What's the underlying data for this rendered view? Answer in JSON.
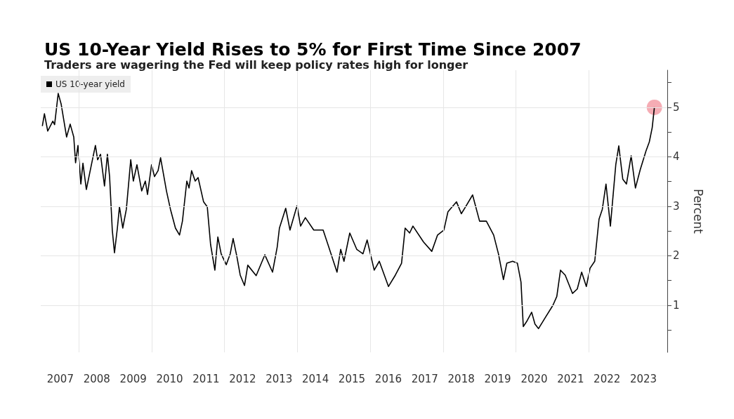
{
  "chart_data": {
    "type": "line",
    "title": "US 10-Year Yield Rises to 5% for First Time Since 2007",
    "subtitle": "Traders are wagering the Fed will keep policy rates high for longer",
    "ylabel": "Percent",
    "legend": "top left",
    "grid": true,
    "marker": "none",
    "line_style": "solid",
    "xlim": [
      "2006-12-17",
      "2024-02-25"
    ],
    "xticks": [
      {
        "value": "2007-07-01",
        "label": "2007"
      },
      {
        "value": "2008-01-01",
        "label": null
      },
      {
        "value": "2008-07-01",
        "label": "2008"
      },
      {
        "value": "2009-07-01",
        "label": "2009"
      },
      {
        "value": "2010-01-01",
        "label": null
      },
      {
        "value": "2010-07-01",
        "label": "2010"
      },
      {
        "value": "2011-07-01",
        "label": "2011"
      },
      {
        "value": "2012-01-01",
        "label": null
      },
      {
        "value": "2012-07-01",
        "label": "2012"
      },
      {
        "value": "2013-07-01",
        "label": "2013"
      },
      {
        "value": "2014-01-01",
        "label": null
      },
      {
        "value": "2014-07-01",
        "label": "2014"
      },
      {
        "value": "2015-07-01",
        "label": "2015"
      },
      {
        "value": "2016-01-01",
        "label": null
      },
      {
        "value": "2016-07-01",
        "label": "2016"
      },
      {
        "value": "2017-07-01",
        "label": "2017"
      },
      {
        "value": "2018-01-01",
        "label": null
      },
      {
        "value": "2018-07-01",
        "label": "2018"
      },
      {
        "value": "2019-07-01",
        "label": "2019"
      },
      {
        "value": "2020-01-01",
        "label": null
      },
      {
        "value": "2020-07-01",
        "label": "2020"
      },
      {
        "value": "2021-07-01",
        "label": "2021"
      },
      {
        "value": "2022-01-01",
        "label": null
      },
      {
        "value": "2022-07-01",
        "label": "2022"
      },
      {
        "value": "2023-07-01",
        "label": "2023"
      }
    ],
    "ylim": [
      0.05,
      5.75
    ],
    "yticks": [
      {
        "value": 0.5,
        "label": null
      },
      1,
      {
        "value": 1.5,
        "label": null
      },
      2,
      {
        "value": 2.5,
        "label": null
      },
      3,
      {
        "value": 3.5,
        "label": null
      },
      4,
      {
        "value": 4.5,
        "label": null
      },
      5,
      {
        "value": 5.5,
        "label": null
      }
    ],
    "series": [
      {
        "name": "US 10-year yield",
        "color": "#000000",
        "x": [
          "2007-01-02",
          "2007-01-23",
          "2007-02-25",
          "2007-04-17",
          "2007-05-05",
          "2007-06-10",
          "2007-07-09",
          "2007-09-02",
          "2007-10-08",
          "2007-11-13",
          "2007-12-01",
          "2007-12-25",
          "2008-01-23",
          "2008-02-13",
          "2008-03-18",
          "2008-05-08",
          "2008-06-17",
          "2008-07-09",
          "2008-08-07",
          "2008-09-16",
          "2008-10-15",
          "2008-11-06",
          "2008-12-03",
          "2008-12-25",
          "2009-01-23",
          "2009-02-13",
          "2009-03-18",
          "2009-04-23",
          "2009-06-06",
          "2009-07-02",
          "2009-08-07",
          "2009-09-24",
          "2009-10-30",
          "2009-11-21",
          "2010-01-01",
          "2010-01-30",
          "2010-03-07",
          "2010-04-01",
          "2010-05-30",
          "2010-07-09",
          "2010-08-28",
          "2010-10-08",
          "2010-11-06",
          "2010-12-20",
          "2011-01-11",
          "2011-02-06",
          "2011-03-14",
          "2011-04-12",
          "2011-06-06",
          "2011-07-13",
          "2011-08-15",
          "2011-09-27",
          "2011-10-27",
          "2011-11-29",
          "2012-01-19",
          "2012-02-28",
          "2012-03-28",
          "2012-05-04",
          "2012-06-07",
          "2012-07-20",
          "2012-08-22",
          "2012-11-14",
          "2013-02-09",
          "2013-04-27",
          "2013-06-13",
          "2013-07-05",
          "2013-09-06",
          "2013-10-19",
          "2013-12-28",
          "2014-02-02",
          "2014-03-22",
          "2014-06-14",
          "2014-09-16",
          "2014-11-03",
          "2015-02-02",
          "2015-03-11",
          "2015-04-13",
          "2015-06-10",
          "2015-08-19",
          "2015-10-20",
          "2015-12-01",
          "2016-02-10",
          "2016-04-01",
          "2016-07-02",
          "2016-09-09",
          "2016-11-10",
          "2016-12-16",
          "2017-01-30",
          "2017-03-04",
          "2017-06-18",
          "2017-09-09",
          "2017-11-06",
          "2018-01-08",
          "2018-02-18",
          "2018-05-15",
          "2018-07-02",
          "2018-08-14",
          "2018-10-23",
          "2019-01-01",
          "2019-03-10",
          "2019-05-22",
          "2019-07-09",
          "2019-08-28",
          "2019-10-01",
          "2019-11-28",
          "2020-01-15",
          "2020-02-20",
          "2020-03-14",
          "2020-04-16",
          "2020-06-06",
          "2020-07-09",
          "2020-08-14",
          "2020-10-23",
          "2021-01-05",
          "2021-02-13",
          "2021-03-22",
          "2021-05-08",
          "2021-07-20",
          "2021-09-06",
          "2021-10-20",
          "2021-12-06",
          "2022-01-12",
          "2022-02-28",
          "2022-04-12",
          "2022-05-15",
          "2022-06-21",
          "2022-08-04",
          "2022-09-27",
          "2022-10-27",
          "2022-12-06",
          "2023-01-12",
          "2023-02-28",
          "2023-04-12",
          "2023-05-30",
          "2023-07-27",
          "2023-08-29",
          "2023-09-27",
          "2023-10-19"
        ],
        "values": [
          4.62,
          4.87,
          4.52,
          4.72,
          4.65,
          5.28,
          5.07,
          4.4,
          4.66,
          4.4,
          3.88,
          4.23,
          3.45,
          3.87,
          3.34,
          3.84,
          4.23,
          3.94,
          4.05,
          3.41,
          4.05,
          3.6,
          2.52,
          2.06,
          2.56,
          2.99,
          2.56,
          2.94,
          3.94,
          3.51,
          3.84,
          3.31,
          3.51,
          3.24,
          3.84,
          3.6,
          3.72,
          3.98,
          3.31,
          2.94,
          2.56,
          2.42,
          2.7,
          3.51,
          3.37,
          3.72,
          3.51,
          3.58,
          3.09,
          2.99,
          2.23,
          1.71,
          2.38,
          2.04,
          1.82,
          2.04,
          2.35,
          1.99,
          1.61,
          1.4,
          1.81,
          1.6,
          2.02,
          1.67,
          2.18,
          2.56,
          2.96,
          2.52,
          3.01,
          2.6,
          2.77,
          2.52,
          2.52,
          2.23,
          1.67,
          2.13,
          1.89,
          2.46,
          2.13,
          2.04,
          2.32,
          1.71,
          1.89,
          1.38,
          1.61,
          1.85,
          2.56,
          2.46,
          2.6,
          2.28,
          2.09,
          2.42,
          2.52,
          2.89,
          3.09,
          2.85,
          2.99,
          3.23,
          2.7,
          2.7,
          2.42,
          2.04,
          1.52,
          1.85,
          1.89,
          1.85,
          1.47,
          0.57,
          0.67,
          0.86,
          0.62,
          0.53,
          0.76,
          1.0,
          1.18,
          1.71,
          1.61,
          1.24,
          1.33,
          1.67,
          1.38,
          1.75,
          1.89,
          2.74,
          2.94,
          3.45,
          2.6,
          3.84,
          4.22,
          3.55,
          3.45,
          4.02,
          3.37,
          3.74,
          4.12,
          4.3,
          4.59,
          5.0
        ]
      },
      {
        "type": "scatter",
        "color": "#f4a3ac",
        "marker": "circle",
        "x": [
          "2023-10-19"
        ],
        "values": [
          5.0
        ]
      }
    ]
  }
}
